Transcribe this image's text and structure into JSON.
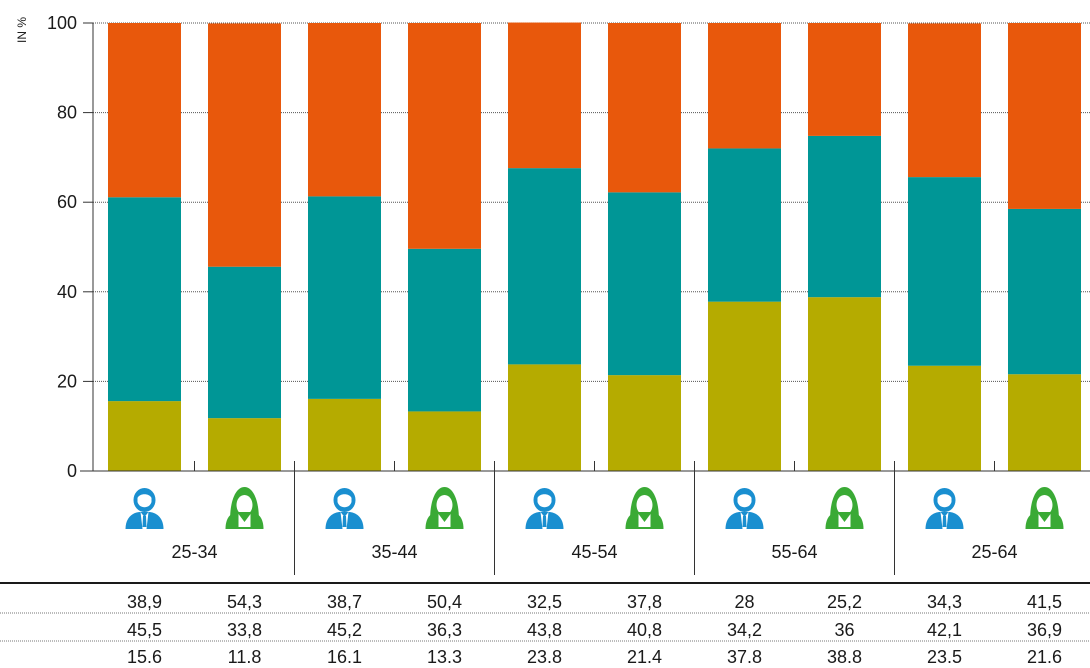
{
  "chart_data": {
    "type": "bar",
    "stacked": true,
    "ylabel": "IN %",
    "ylim": [
      0,
      100
    ],
    "yticks": [
      "0",
      "20",
      "40",
      "60",
      "80",
      "100"
    ],
    "grid": true,
    "groups": [
      "25-34",
      "35-44",
      "45-54",
      "55-64",
      "25-64"
    ],
    "bar_genders": [
      "male",
      "female",
      "male",
      "female",
      "male",
      "female",
      "male",
      "female",
      "male",
      "female"
    ],
    "series": [
      {
        "color": "#b5ab00",
        "values": [
          15.6,
          11.8,
          16.1,
          13.3,
          23.8,
          21.4,
          37.8,
          38.8,
          23.5,
          21.6
        ]
      },
      {
        "color": "#009696",
        "values": [
          45.5,
          33.8,
          45.2,
          36.3,
          43.8,
          40.8,
          34.2,
          36,
          42.1,
          36.9
        ]
      },
      {
        "color": "#e8580c",
        "values": [
          38.9,
          54.3,
          38.7,
          50.4,
          32.5,
          37.8,
          28,
          25.2,
          34.3,
          41.5
        ]
      }
    ],
    "table_rows": [
      [
        "38,9",
        "54,3",
        "38,7",
        "50,4",
        "32,5",
        "37,8",
        "28",
        "25,2",
        "34,3",
        "41,5"
      ],
      [
        "45,5",
        "33,8",
        "45,2",
        "36,3",
        "43,8",
        "40,8",
        "34,2",
        "36",
        "42,1",
        "36,9"
      ],
      [
        "15.6",
        "11.8",
        "16.1",
        "13.3",
        "23.8",
        "21.4",
        "37.8",
        "38.8",
        "23.5",
        "21.6"
      ]
    ]
  },
  "icons": {
    "male": "person-male-icon",
    "female": "person-female-icon",
    "male_color": "#1a8fd0",
    "female_color": "#3aaa35"
  }
}
